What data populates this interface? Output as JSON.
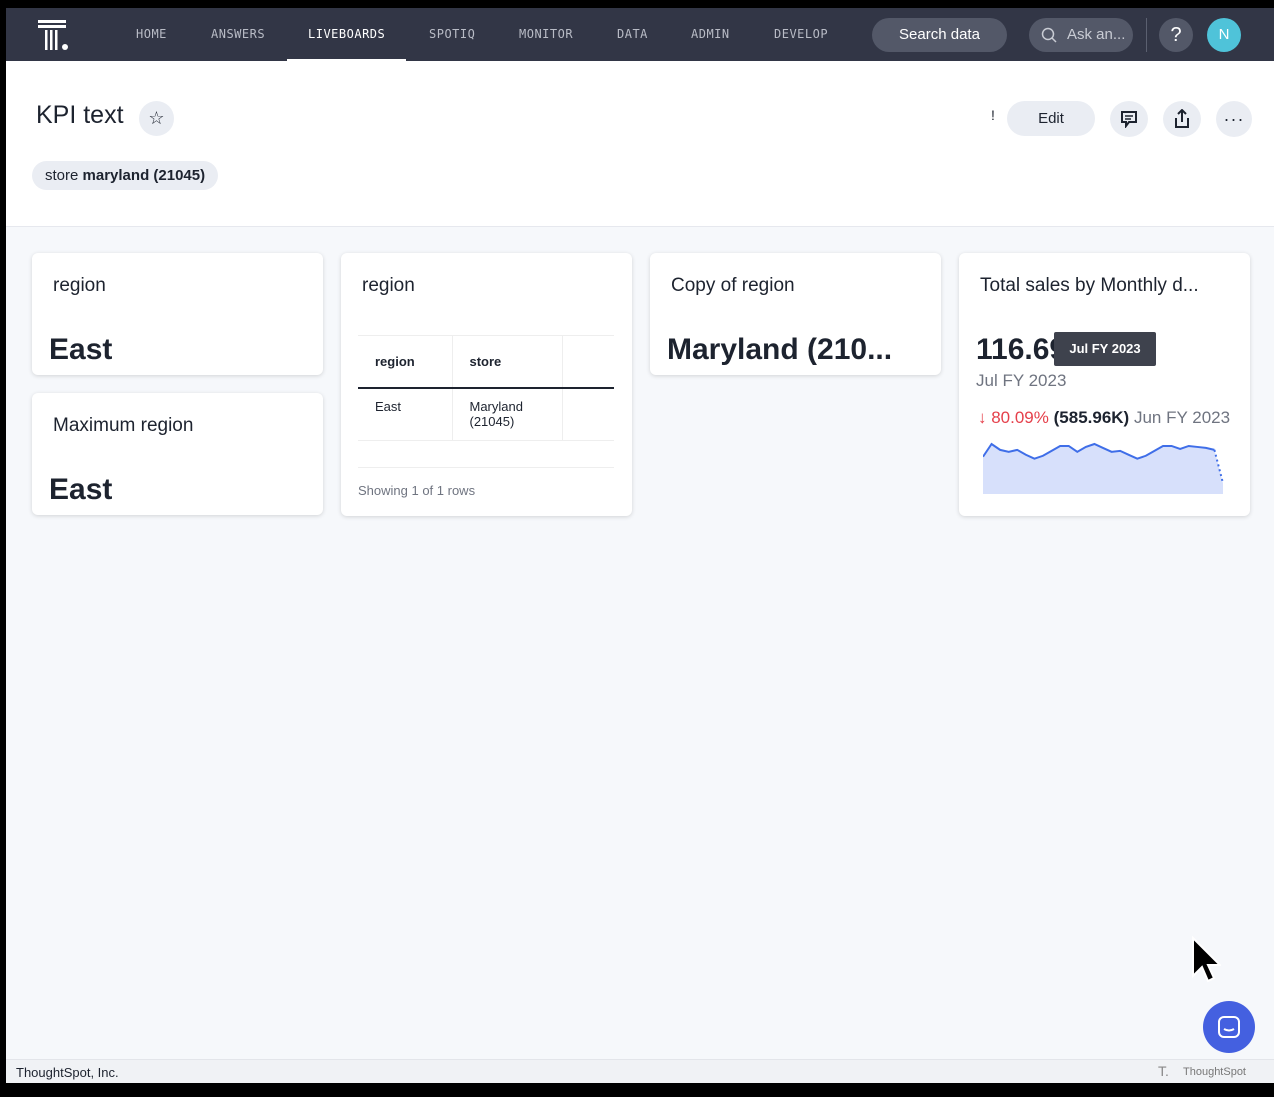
{
  "nav": {
    "items": [
      "HOME",
      "ANSWERS",
      "LIVEBOARDS",
      "SPOTIQ",
      "MONITOR",
      "DATA",
      "ADMIN",
      "DEVELOP"
    ],
    "active": "LIVEBOARDS",
    "search_label": "Search data",
    "ask_placeholder": "Ask an...",
    "help": "?",
    "avatar": "N"
  },
  "header": {
    "title": "KPI text",
    "filter_prefix": "store",
    "filter_value": "maryland (21045)",
    "excl": "!",
    "edit_label": "Edit"
  },
  "cards": [
    {
      "title": "region",
      "value": "East"
    },
    {
      "title": "Maximum region",
      "value": "East"
    },
    {
      "title": "region",
      "table": {
        "columns": [
          "region",
          "store"
        ],
        "rows": [
          [
            "East",
            "Maryland (21045)"
          ]
        ]
      },
      "footer": "Showing 1 of 1 rows"
    },
    {
      "title": "Copy of region",
      "value": "Maryland (210..."
    },
    {
      "title": "Total sales by Monthly d...",
      "value": "116.69K",
      "period": "Jul FY 2023",
      "change": "↓ 80.09%",
      "change_value": "(585.96K)",
      "compare_period": "Jun FY 2023",
      "tooltip": "Jul FY 2023",
      "change_color": "#e5404b",
      "line_color": "#3f6ee8",
      "sparkline_values": [
        38,
        51,
        45,
        43,
        45,
        40,
        36,
        39,
        44,
        49,
        49,
        43,
        48,
        51,
        47,
        43,
        44,
        40,
        36,
        39,
        44,
        49,
        49,
        46,
        49,
        48,
        47,
        45,
        11
      ]
    }
  ],
  "footer": {
    "company": "ThoughtSpot, Inc.",
    "brand": "ThoughtSpot"
  }
}
